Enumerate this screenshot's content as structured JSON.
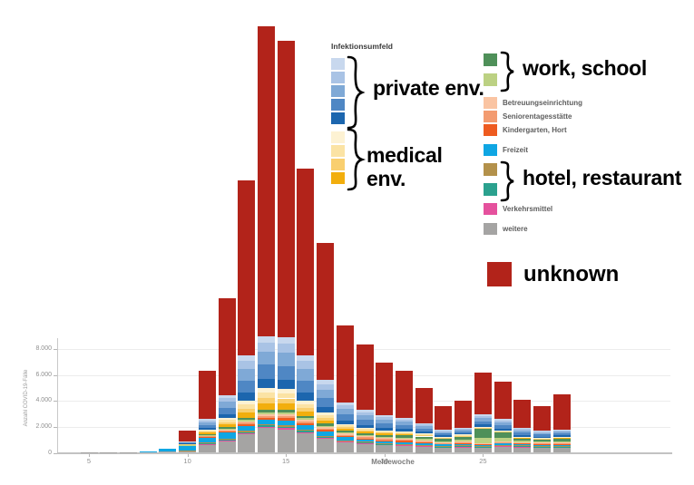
{
  "legend": {
    "title": "Infektionsumfeld",
    "private": {
      "label": "private env.",
      "colors": [
        "#c8d8ee",
        "#a9c3e5",
        "#7fa9d6",
        "#4f87c4",
        "#1c66ae"
      ]
    },
    "medical": {
      "label": "medical env.",
      "colors": [
        "#fdf2d3",
        "#fbe3a4",
        "#f9cf6f",
        "#f2ae0d"
      ]
    },
    "work": {
      "label": "work, school",
      "colors": [
        "#4f9059",
        "#bcd183"
      ]
    },
    "care_entries": [
      {
        "label": "Betreuungseinrichtung",
        "color": "#fac4a2"
      },
      {
        "label": "Seniorentagesstätte",
        "color": "#f39b70"
      },
      {
        "label": "Kindergarten, Hort",
        "color": "#ee5b20"
      }
    ],
    "freizeit": {
      "label": "Freizeit",
      "color": "#0fa6e3"
    },
    "hotel": {
      "label": "hotel, restaurant",
      "colors": [
        "#b3914b",
        "#2ba18e"
      ]
    },
    "verkehrsmittel": {
      "label": "Verkehrsmittel",
      "color": "#e5519d"
    },
    "weitere": {
      "label": "weitere",
      "color": "#a5a4a3"
    },
    "unknown": {
      "label": "unknown",
      "color": "#b2231a"
    }
  },
  "chart_data": {
    "type": "bar",
    "stacked": true,
    "title": "",
    "x_axis": {
      "label": "Meldewoche",
      "ticks": [
        {
          "value": 5,
          "label": "5"
        },
        {
          "value": 10,
          "label": "10"
        },
        {
          "value": 15,
          "label": "15"
        },
        {
          "value": 20,
          "label": "20"
        },
        {
          "value": 25,
          "label": "25"
        }
      ]
    },
    "y_axis": {
      "label": "Anzahl COVID-19-Fälle",
      "ticks": [
        {
          "value": 0,
          "label": "0"
        },
        {
          "value": 2000,
          "label": "2.000"
        },
        {
          "value": 4000,
          "label": "4.000"
        },
        {
          "value": 6000,
          "label": "6.000"
        },
        {
          "value": 8000,
          "label": "8.000"
        }
      ]
    },
    "layout": {
      "grid": true,
      "visible_axis_max": 8000,
      "bars_exceed_axis": true,
      "legend_position": "top-right"
    },
    "groups": [
      {
        "key": "weitere",
        "label": "weitere",
        "colors": [
          "#a5a4a3"
        ],
        "weights": [
          1
        ]
      },
      {
        "key": "verkehrsmittel",
        "label": "Verkehrsmittel",
        "colors": [
          "#e5519d"
        ],
        "weights": [
          1
        ]
      },
      {
        "key": "hotel_restaurant",
        "label": "hotel, restaurant",
        "colors": [
          "#2ba18e",
          "#b3914b"
        ],
        "weights": [
          0.55,
          0.45
        ]
      },
      {
        "key": "freizeit",
        "label": "Freizeit",
        "colors": [
          "#0fa6e3"
        ],
        "weights": [
          1
        ]
      },
      {
        "key": "betreuung",
        "label": "Kindergarten, Hort / Seniorentagesstätte / Betreuungseinrichtung",
        "colors": [
          "#ee5b20",
          "#f39b70",
          "#fac4a2"
        ],
        "weights": [
          0.34,
          0.33,
          0.33
        ]
      },
      {
        "key": "work_school",
        "label": "work, school",
        "colors": [
          "#bcd183",
          "#4f9059"
        ],
        "weights": [
          0.35,
          0.65
        ]
      },
      {
        "key": "medical",
        "label": "medical env.",
        "colors": [
          "#f2ae0d",
          "#f9cf6f",
          "#fbe3a4",
          "#fdf2d3"
        ],
        "weights": [
          0.3,
          0.26,
          0.24,
          0.2
        ]
      },
      {
        "key": "private",
        "label": "private env.",
        "colors": [
          "#1c66ae",
          "#4f87c4",
          "#7fa9d6",
          "#a9c3e5",
          "#c8d8ee"
        ],
        "weights": [
          0.18,
          0.27,
          0.25,
          0.18,
          0.12
        ]
      },
      {
        "key": "unknown",
        "label": "unknown",
        "colors": [
          "#b2231a"
        ],
        "weights": [
          1
        ]
      }
    ],
    "segment_order_note": "segments arrays follow groups order bottom-to-top",
    "weeks": [
      {
        "week": 5,
        "segments": [
          40,
          0,
          0,
          0,
          0,
          0,
          0,
          0,
          0
        ]
      },
      {
        "week": 6,
        "segments": [
          50,
          0,
          0,
          0,
          0,
          0,
          0,
          0,
          0
        ]
      },
      {
        "week": 7,
        "segments": [
          60,
          0,
          0,
          0,
          0,
          0,
          0,
          0,
          0
        ]
      },
      {
        "week": 8,
        "segments": [
          80,
          0,
          0,
          20,
          0,
          0,
          0,
          0,
          0
        ]
      },
      {
        "week": 9,
        "segments": [
          90,
          0,
          0,
          200,
          0,
          0,
          0,
          0,
          0
        ]
      },
      {
        "week": 10,
        "segments": [
          150,
          0,
          40,
          380,
          40,
          30,
          80,
          180,
          800
        ]
      },
      {
        "week": 11,
        "segments": [
          650,
          50,
          100,
          400,
          150,
          100,
          350,
          800,
          3700
        ]
      },
      {
        "week": 12,
        "segments": [
          900,
          60,
          150,
          450,
          250,
          150,
          700,
          1800,
          7440
        ]
      },
      {
        "week": 13,
        "segments": [
          1400,
          90,
          200,
          400,
          350,
          250,
          1300,
          3500,
          13510
        ]
      },
      {
        "week": 14,
        "segments": [
          1900,
          100,
          200,
          350,
          450,
          300,
          1700,
          4000,
          23900
        ]
      },
      {
        "week": 15,
        "segments": [
          1800,
          100,
          200,
          400,
          500,
          300,
          1600,
          4000,
          22900
        ]
      },
      {
        "week": 16,
        "segments": [
          1500,
          90,
          180,
          350,
          450,
          280,
          1150,
          3500,
          14400
        ]
      },
      {
        "week": 17,
        "segments": [
          1100,
          70,
          150,
          300,
          380,
          250,
          850,
          2500,
          10600
        ]
      },
      {
        "week": 18,
        "segments": [
          800,
          50,
          120,
          220,
          280,
          230,
          500,
          1700,
          5900
        ]
      },
      {
        "week": 19,
        "segments": [
          700,
          40,
          110,
          180,
          250,
          220,
          400,
          1400,
          5050
        ]
      },
      {
        "week": 20,
        "segments": [
          600,
          40,
          100,
          160,
          230,
          250,
          320,
          1200,
          4050
        ]
      },
      {
        "week": 21,
        "segments": [
          550,
          35,
          100,
          150,
          220,
          300,
          280,
          1065,
          3600
        ]
      },
      {
        "week": 22,
        "segments": [
          500,
          30,
          90,
          140,
          200,
          300,
          240,
          800,
          2700
        ]
      },
      {
        "week": 23,
        "segments": [
          420,
          25,
          80,
          120,
          170,
          250,
          185,
          500,
          1830
        ]
      },
      {
        "week": 24,
        "segments": [
          450,
          25,
          90,
          130,
          180,
          350,
          175,
          500,
          2150
        ]
      },
      {
        "week": 25,
        "segments": [
          400,
          25,
          90,
          100,
          150,
          1100,
          135,
          950,
          3230
        ]
      },
      {
        "week": 26,
        "segments": [
          500,
          25,
          90,
          110,
          160,
          700,
          125,
          890,
          2880
        ]
      },
      {
        "week": 27,
        "segments": [
          450,
          25,
          90,
          110,
          160,
          300,
          115,
          650,
          2170
        ]
      },
      {
        "week": 28,
        "segments": [
          420,
          25,
          80,
          100,
          150,
          280,
          105,
          540,
          1880
        ]
      },
      {
        "week": 29,
        "segments": [
          400,
          30,
          90,
          100,
          160,
          350,
          110,
          560,
          2690
        ]
      }
    ]
  }
}
